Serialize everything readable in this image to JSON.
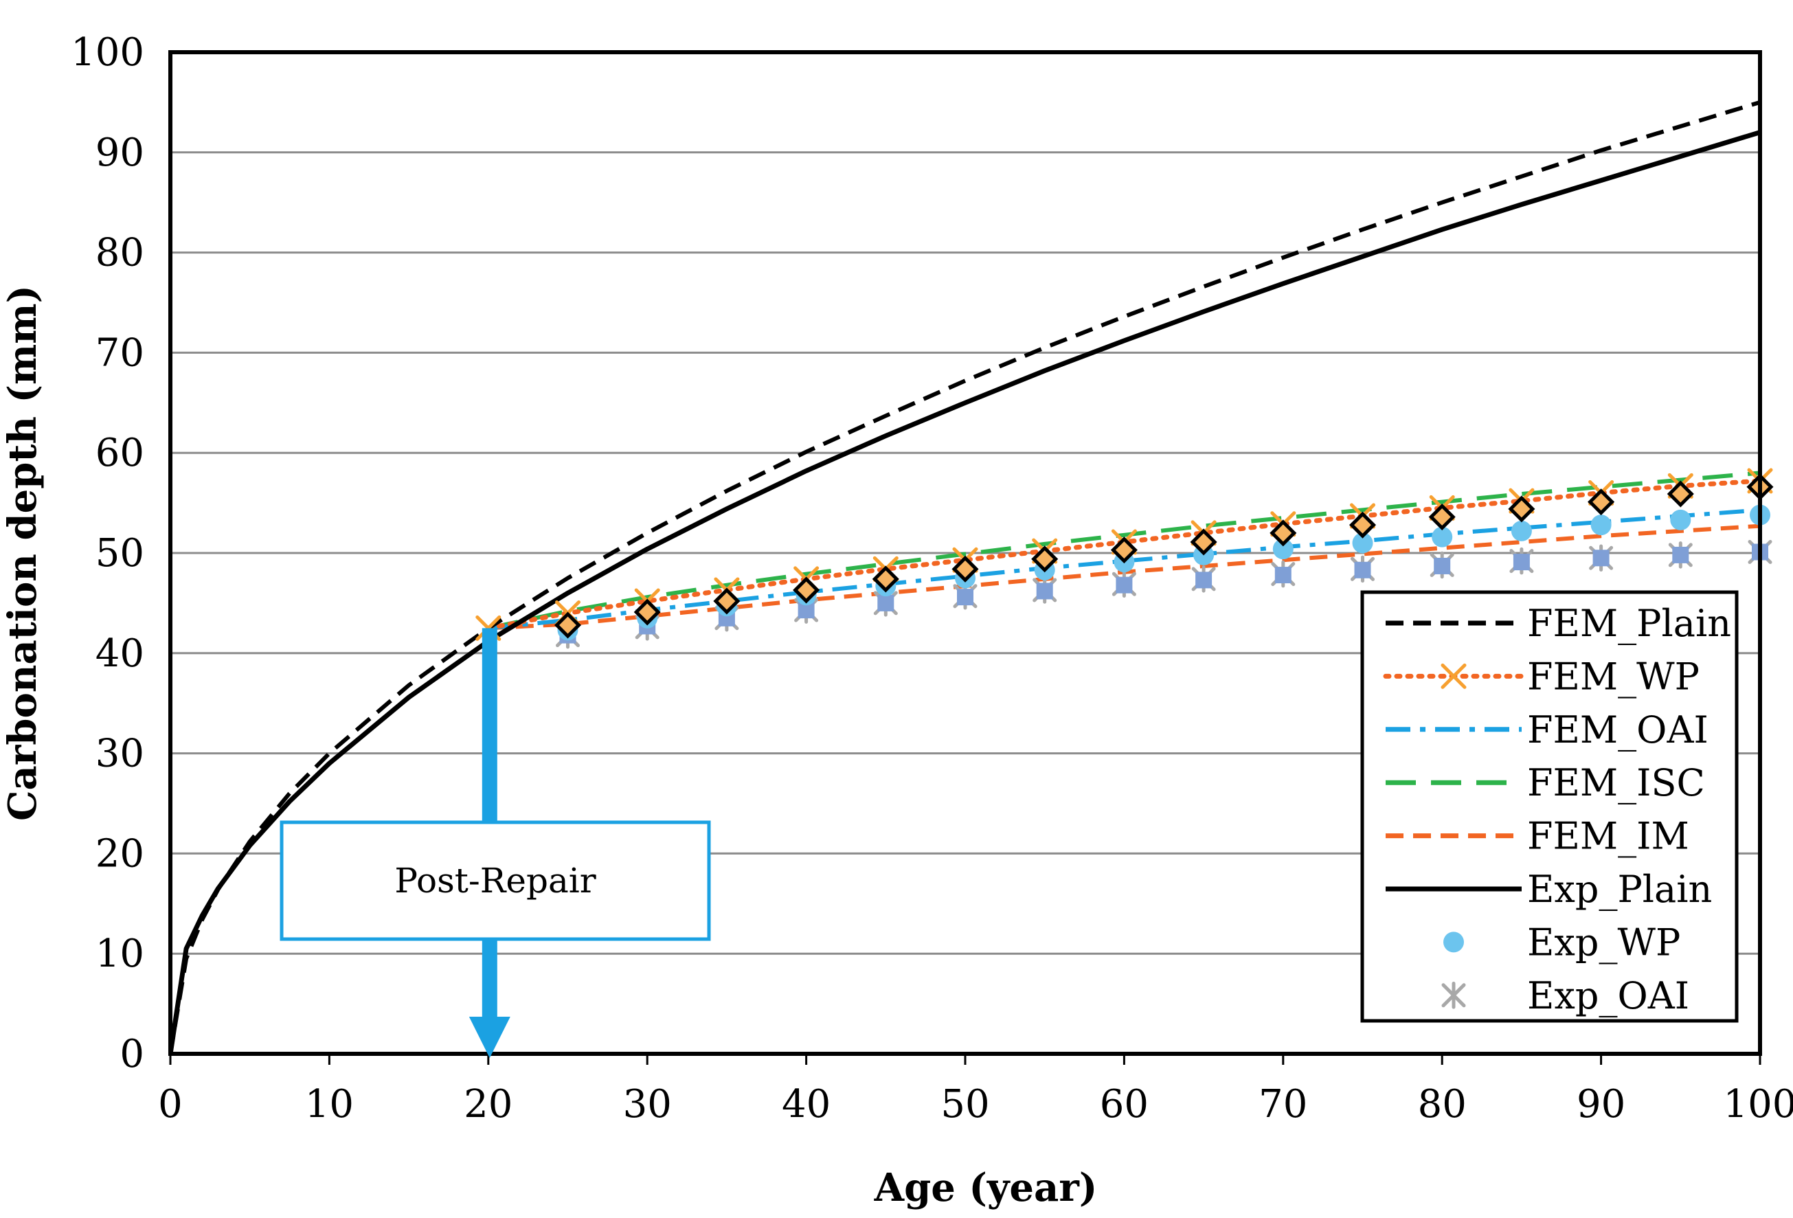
{
  "chart_data": {
    "type": "line",
    "xlabel": "Age (year)",
    "ylabel": "Carbonation depth (mm)",
    "xlim": [
      0,
      100
    ],
    "ylim": [
      0,
      100
    ],
    "x_ticks": [
      0,
      10,
      20,
      30,
      40,
      50,
      60,
      70,
      80,
      90,
      100
    ],
    "y_ticks": [
      0,
      10,
      20,
      30,
      40,
      50,
      60,
      70,
      80,
      90,
      100
    ],
    "grid": "horizontal",
    "legend_position": "bottom-right",
    "annotation": {
      "text": "Post-Repair",
      "x": 20,
      "arrow_color": "#1BA1E2"
    },
    "series": [
      {
        "name": "FEM_Plain",
        "style": "dashed",
        "color": "#000000",
        "marker": "none",
        "x": [
          0,
          1,
          2,
          3,
          5,
          7.5,
          10,
          15,
          20,
          25,
          30,
          35,
          40,
          45,
          50,
          55,
          60,
          65,
          70,
          75,
          80,
          85,
          90,
          95,
          100
        ],
        "y": [
          0,
          9.5,
          13.4,
          16.4,
          21.2,
          26,
          30,
          36.8,
          42.5,
          47.5,
          52,
          56.2,
          60.1,
          63.7,
          67.2,
          70.5,
          73.6,
          76.6,
          79.5,
          82.3,
          85,
          87.6,
          90.2,
          92.6,
          95
        ]
      },
      {
        "name": "FEM_WP",
        "style": "dotted",
        "color": "#F26522",
        "marker": "x",
        "marker_color": "#F7A030",
        "x": [
          20,
          25,
          30,
          35,
          40,
          45,
          50,
          55,
          60,
          65,
          70,
          75,
          80,
          85,
          90,
          95,
          100
        ],
        "y": [
          42.5,
          44,
          45.2,
          46.3,
          47.4,
          48.4,
          49.3,
          50.2,
          51.1,
          52,
          52.9,
          53.7,
          54.5,
          55.2,
          56,
          56.7,
          57.2
        ]
      },
      {
        "name": "FEM_OAI",
        "style": "dash-dot",
        "color": "#1BA1E2",
        "marker": "none",
        "x": [
          20,
          25,
          30,
          35,
          40,
          45,
          50,
          55,
          60,
          65,
          70,
          75,
          80,
          85,
          90,
          95,
          100
        ],
        "y": [
          42.5,
          43.3,
          44.3,
          45.2,
          46.1,
          46.9,
          47.7,
          48.5,
          49.2,
          49.9,
          50.6,
          51.2,
          51.9,
          52.5,
          53.1,
          53.7,
          54.3
        ]
      },
      {
        "name": "FEM_ISC",
        "style": "long-dash",
        "color": "#2DB34A",
        "marker": "none",
        "x": [
          20,
          25,
          30,
          35,
          40,
          45,
          50,
          55,
          60,
          65,
          70,
          75,
          80,
          85,
          90,
          95,
          100
        ],
        "y": [
          42.5,
          44.2,
          45.6,
          46.8,
          47.9,
          48.9,
          49.9,
          50.9,
          51.8,
          52.7,
          53.5,
          54.3,
          55.1,
          55.9,
          56.6,
          57.3,
          58
        ]
      },
      {
        "name": "FEM_IM",
        "style": "dashed",
        "color": "#F26522",
        "marker": "none",
        "x": [
          20,
          25,
          30,
          35,
          40,
          45,
          50,
          55,
          60,
          65,
          70,
          75,
          80,
          85,
          90,
          95,
          100
        ],
        "y": [
          42.5,
          42.9,
          43.7,
          44.5,
          45.3,
          46,
          46.7,
          47.4,
          48.1,
          48.7,
          49.3,
          49.9,
          50.5,
          51.1,
          51.7,
          52.2,
          52.7
        ]
      },
      {
        "name": "Exp_Plain",
        "style": "solid",
        "color": "#000000",
        "marker": "none",
        "x": [
          0,
          1,
          2,
          3,
          5,
          7.5,
          10,
          15,
          20,
          25,
          30,
          35,
          40,
          45,
          50,
          55,
          60,
          65,
          70,
          75,
          80,
          85,
          90,
          95,
          100
        ],
        "y": [
          0,
          10.5,
          13.8,
          16.5,
          20.8,
          25.2,
          29,
          35.6,
          41.2,
          46,
          50.4,
          54.4,
          58.2,
          61.7,
          65,
          68.2,
          71.2,
          74.1,
          76.9,
          79.6,
          82.3,
          84.8,
          87.2,
          89.6,
          92
        ]
      },
      {
        "name": "Exp_WP",
        "style": "none",
        "color": "#6CC4EE",
        "marker": "circle",
        "x": [
          25,
          30,
          35,
          40,
          45,
          50,
          55,
          60,
          65,
          70,
          75,
          80,
          85,
          90,
          95,
          100
        ],
        "y": [
          42.3,
          43.5,
          44.7,
          45.8,
          46.7,
          47.5,
          48.3,
          49.1,
          49.8,
          50.4,
          51,
          51.6,
          52.2,
          52.8,
          53.3,
          53.8
        ]
      },
      {
        "name": "Exp_OAI",
        "style": "none",
        "color": "#A8A8A8",
        "marker": "asterisk",
        "x": [
          25,
          30,
          35,
          40,
          45,
          50,
          55,
          60,
          65,
          70,
          75,
          80,
          85,
          90,
          95,
          100
        ],
        "y": [
          41.8,
          42.6,
          43.5,
          44.3,
          45,
          45.7,
          46.3,
          46.9,
          47.4,
          47.9,
          48.4,
          48.8,
          49.2,
          49.5,
          49.8,
          50.1
        ]
      }
    ],
    "unlisted_markers": [
      {
        "description": "diamond",
        "fill": "#F7B462",
        "stroke": "#000000",
        "x": [
          25,
          30,
          35,
          40,
          45,
          50,
          55,
          60,
          65,
          70,
          75,
          80,
          85,
          90,
          95,
          100
        ],
        "y": [
          42.8,
          44.1,
          45.2,
          46.3,
          47.4,
          48.4,
          49.4,
          50.3,
          51.1,
          52,
          52.8,
          53.6,
          54.4,
          55.1,
          55.9,
          56.6
        ]
      },
      {
        "description": "square",
        "fill": "#7F9FD6",
        "stroke": "none",
        "x": [
          25,
          30,
          35,
          40,
          45,
          50,
          55,
          60,
          65,
          70,
          75,
          80,
          85,
          90,
          95,
          100
        ],
        "y": [
          41.8,
          42.7,
          43.5,
          44.3,
          45,
          45.6,
          46.2,
          46.8,
          47.3,
          47.8,
          48.3,
          48.7,
          49.1,
          49.5,
          49.8,
          50.1
        ]
      }
    ]
  }
}
